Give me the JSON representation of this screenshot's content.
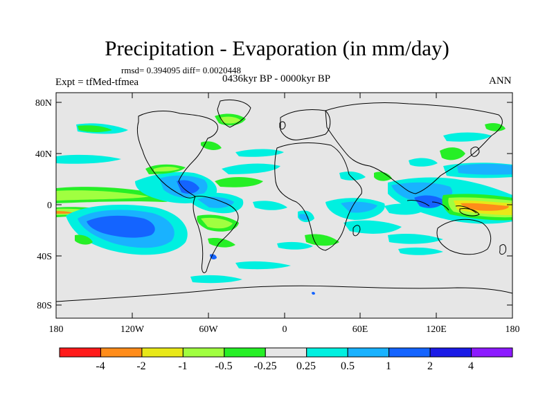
{
  "title": "Precipitation - Evaporation (in mm/day)",
  "stats": "rmsd= 0.394095 diff= 0.0020448",
  "expt": "Expt = tfMed-tfmea",
  "period": "0436kyr BP - 0000kyr BP",
  "season": "ANN",
  "lat_labels": [
    "80N",
    "40N",
    "0",
    "40S",
    "80S"
  ],
  "lon_labels": [
    "180",
    "120W",
    "60W",
    "0",
    "60E",
    "120E",
    "180"
  ],
  "colorbar": {
    "labels": [
      "-4",
      "-2",
      "-1",
      "-0.5",
      "-0.25",
      "0.25",
      "0.5",
      "1",
      "2",
      "4"
    ],
    "colors": [
      "#ff1a1a",
      "#ff8c1a",
      "#e8e818",
      "#a0ff40",
      "#26ef26",
      "#e6e6e6",
      "#00f0e0",
      "#19b2ff",
      "#1464ff",
      "#1a1ae6",
      "#8c1aff"
    ]
  },
  "map_colors": {
    "background": "#e6e6e6",
    "green_dark": "#26ef26",
    "green_light": "#a0ff40",
    "yellow": "#e8e818",
    "orange": "#ff8c1a",
    "red": "#ff1a1a",
    "cyan": "#00f0e0",
    "light_blue": "#19b2ff",
    "blue": "#1464ff",
    "dark_blue": "#1a1ae6"
  }
}
